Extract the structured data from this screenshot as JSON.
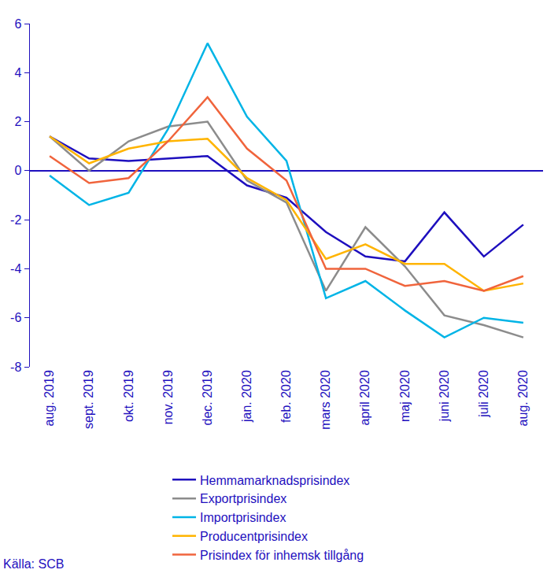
{
  "chart_data": {
    "type": "line",
    "categories": [
      "aug. 2019",
      "sept. 2019",
      "okt. 2019",
      "nov. 2019",
      "dec. 2019",
      "jan. 2020",
      "feb. 2020",
      "mars 2020",
      "april 2020",
      "maj 2020",
      "juni 2020",
      "juli 2020",
      "aug. 2020"
    ],
    "series": [
      {
        "name": "Hemmamarknadsprisindex",
        "color": "#1e0fbe",
        "values": [
          1.4,
          0.5,
          0.4,
          0.5,
          0.6,
          -0.6,
          -1.1,
          -2.5,
          -3.5,
          -3.7,
          -1.7,
          -3.5,
          -2.2
        ]
      },
      {
        "name": "Exportprisindex",
        "color": "#8c8c8c",
        "values": [
          1.4,
          0.0,
          1.2,
          1.8,
          2.0,
          -0.4,
          -1.3,
          -4.9,
          -2.3,
          -3.9,
          -5.9,
          -6.3,
          -6.8
        ]
      },
      {
        "name": "Importprisindex",
        "color": "#00b4e6",
        "values": [
          -0.2,
          -1.4,
          -0.9,
          1.7,
          5.2,
          2.2,
          0.4,
          -5.2,
          -4.5,
          -5.7,
          -6.8,
          -6.0,
          -6.2
        ]
      },
      {
        "name": "Producentprisindex",
        "color": "#ffb400",
        "values": [
          1.4,
          0.3,
          0.9,
          1.2,
          1.3,
          -0.3,
          -1.2,
          -3.6,
          -3.0,
          -3.8,
          -3.8,
          -4.9,
          -4.6
        ]
      },
      {
        "name": "Prisindex för inhemsk tillgång",
        "color": "#f0643c",
        "values": [
          0.6,
          -0.5,
          -0.3,
          1.2,
          3.0,
          0.9,
          -0.4,
          -4.0,
          -4.0,
          -4.7,
          -4.5,
          -4.9,
          -4.3
        ]
      }
    ],
    "ylim": [
      -8,
      6
    ],
    "yticks": [
      -8,
      -6,
      -4,
      -2,
      0,
      2,
      4,
      6
    ],
    "grid": false,
    "legend": "bottom",
    "annotations": [
      "Källa: SCB"
    ]
  }
}
